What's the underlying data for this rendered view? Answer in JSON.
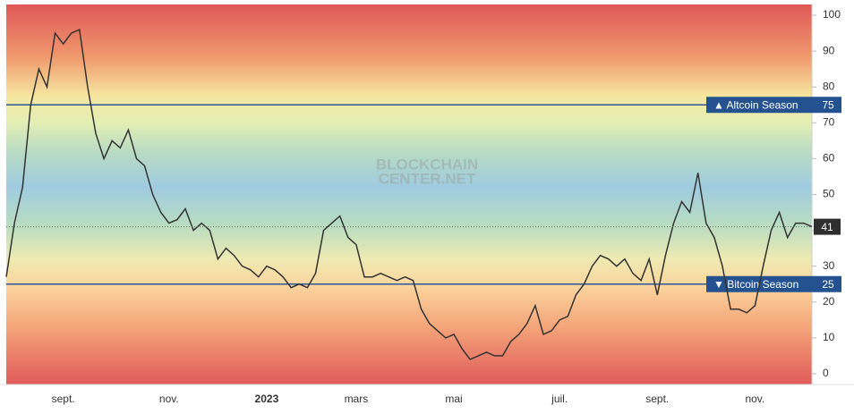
{
  "chart_data": {
    "type": "line",
    "watermark": [
      "BLOCKCHAIN",
      "CENTER.NET"
    ],
    "categories": [
      null,
      null,
      null,
      null,
      null,
      null,
      null,
      "sept.",
      null,
      null,
      null,
      null,
      null,
      null,
      null,
      null,
      null,
      null,
      null,
      null,
      "nov.",
      null,
      null,
      null,
      null,
      null,
      null,
      null,
      null,
      null,
      null,
      null,
      "2023",
      null,
      null,
      null,
      null,
      null,
      null,
      null,
      null,
      null,
      null,
      "mars",
      null,
      null,
      null,
      null,
      null,
      null,
      null,
      null,
      null,
      null,
      null,
      "mai",
      null,
      null,
      null,
      null,
      null,
      null,
      null,
      null,
      null,
      null,
      null,
      null,
      "juil.",
      null,
      null,
      null,
      null,
      null,
      null,
      null,
      null,
      null,
      null,
      null,
      "sept.",
      null,
      null,
      null,
      null,
      null,
      null,
      null,
      null,
      null,
      null,
      null,
      "nov.",
      null,
      null,
      null,
      null,
      null,
      null,
      null
    ],
    "series": [
      {
        "color": "#333333",
        "values": [
          27,
          42,
          52,
          75,
          85,
          80,
          95,
          92,
          95,
          96,
          80,
          67,
          60,
          65,
          63,
          68,
          60,
          58,
          50,
          45,
          42,
          43,
          46,
          40,
          42,
          40,
          32,
          35,
          33,
          30,
          29,
          27,
          30,
          29,
          27,
          24,
          25,
          24,
          28,
          40,
          42,
          44,
          38,
          36,
          27,
          27,
          28,
          27,
          26,
          27,
          26,
          18,
          14,
          12,
          10,
          11,
          7,
          4,
          5,
          6,
          5,
          5,
          9,
          11,
          14,
          19,
          11,
          12,
          15,
          16,
          22,
          25,
          30,
          33,
          32,
          30,
          32,
          28,
          26,
          32,
          22,
          33,
          42,
          48,
          45,
          56,
          42,
          38,
          30,
          18,
          18,
          17,
          19,
          30,
          40,
          45,
          38,
          42,
          42,
          41
        ]
      }
    ],
    "reference_lines": [
      {
        "value": 75,
        "label": "▲ Altcoin Season"
      },
      {
        "value": 25,
        "label": "▼ Bitcoin Season"
      }
    ],
    "ylim": [
      -3,
      103
    ],
    "yticks": [
      0,
      10,
      20,
      30,
      40,
      50,
      60,
      70,
      80,
      90,
      100
    ]
  }
}
